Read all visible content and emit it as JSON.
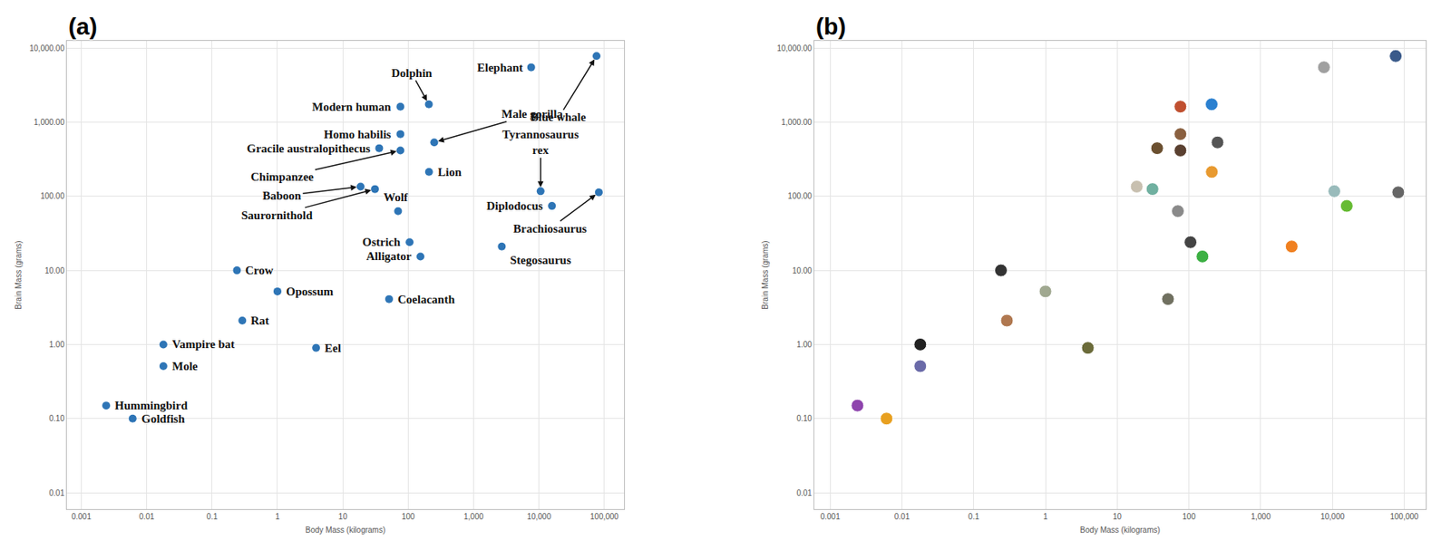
{
  "chart_data": [
    {
      "type": "scatter",
      "title": "(a)",
      "log": true,
      "grid": true,
      "color": "#2e75b6",
      "marker": "circle",
      "xlabel": "Body Mass (kilograms)",
      "ylabel": "Brain Mass (grams)",
      "labels": [
        "Hummingbird",
        "Goldfish",
        "Mole",
        "Vampire bat",
        "Rat",
        "Crow",
        "Opossum",
        "Eel",
        "Coelacanth",
        "Ostrich",
        "Alligator",
        "Stegosaurus",
        "Wolf",
        "Baboon",
        "Saurornithold",
        "Diplodocus",
        "Tyrannosaurus rex",
        "Brachiosaurus",
        "Lion",
        "Male gorilla",
        "Chimpanzee",
        "Gracile australopithecus",
        "Homo habilis",
        "Modern human",
        "Dolphin",
        "Elephant",
        "Blue whale"
      ],
      "x": [
        0.0024,
        0.0061,
        0.018,
        0.018,
        0.29,
        0.24,
        1,
        3.9,
        51,
        105,
        154,
        2700,
        70,
        18.7,
        31,
        15800,
        10600,
        82500,
        208,
        250,
        76,
        36,
        76,
        76,
        207,
        7600,
        76000
      ],
      "values": [
        0.15,
        0.1,
        0.51,
        1.0,
        2.1,
        10,
        5.2,
        0.9,
        4.1,
        24,
        15.4,
        21,
        63,
        135,
        125,
        74,
        117,
        113,
        213,
        533,
        415,
        445,
        690,
        1620,
        1740,
        5500,
        7800
      ],
      "xlim": [
        0.0006,
        200000
      ],
      "ylim": [
        0.006,
        12500
      ],
      "xticks": [
        0.001,
        0.01,
        0.1,
        1,
        10,
        100,
        {
          "value": 1000,
          "label": "1,000"
        },
        {
          "value": 10000,
          "label": "10,000"
        },
        {
          "value": 100000,
          "label": "100,000"
        }
      ],
      "yticks": [
        0.01,
        {
          "value": 0.1,
          "label": "0.10"
        },
        {
          "value": 1,
          "label": "1.00"
        },
        {
          "value": 10,
          "label": "10.00"
        },
        {
          "value": 100,
          "label": "100.00"
        },
        {
          "value": 1000,
          "label": "1,000.00"
        },
        {
          "value": 10000,
          "label": "10,000.00"
        }
      ]
    },
    {
      "type": "scatter",
      "title": "(b)",
      "log": true,
      "grid": true,
      "marker": "circle",
      "xlabel": "Body Mass (kilograms)",
      "ylabel": "Brain Mass (grams)",
      "x": [
        0.0024,
        0.0061,
        0.018,
        0.018,
        0.29,
        0.24,
        1,
        3.9,
        51,
        105,
        154,
        2700,
        70,
        18.7,
        31,
        15800,
        10600,
        82500,
        208,
        250,
        76,
        36,
        76,
        76,
        207,
        7600,
        76000
      ],
      "values": [
        0.15,
        0.1,
        0.51,
        1.0,
        2.1,
        10,
        5.2,
        0.9,
        4.1,
        24,
        15.4,
        21,
        63,
        135,
        125,
        74,
        117,
        113,
        213,
        533,
        415,
        445,
        690,
        1620,
        1740,
        5500,
        7800
      ],
      "colors": [
        "#8e44ad",
        "#e8a020",
        "#6a6aa8",
        "#222222",
        "#b07850",
        "#333333",
        "#a0a890",
        "#6b6b3a",
        "#707060",
        "#444444",
        "#3cb043",
        "#f08020",
        "#8a8a8a",
        "#c8c0b0",
        "#70b0a0",
        "#66bb33",
        "#99bbbb",
        "#666666",
        "#e89a30",
        "#555555",
        "#5a4030",
        "#6b5030",
        "#8a6040",
        "#c05030",
        "#2a80d0",
        "#a0a0a0",
        "#3a5a8a"
      ],
      "xlim": [
        0.0006,
        200000
      ],
      "ylim": [
        0.006,
        12500
      ],
      "xticks": [
        0.001,
        0.01,
        0.1,
        1,
        10,
        100,
        {
          "value": 1000,
          "label": "1,000"
        },
        {
          "value": 10000,
          "label": "10,000"
        },
        {
          "value": 100000,
          "label": "100,000"
        }
      ],
      "yticks": [
        0.01,
        {
          "value": 0.1,
          "label": "0.10"
        },
        {
          "value": 1,
          "label": "1.00"
        },
        {
          "value": 10,
          "label": "10.00"
        },
        {
          "value": 100,
          "label": "100.00"
        },
        {
          "value": 1000,
          "label": "1,000.00"
        },
        {
          "value": 10000,
          "label": "10,000.00"
        }
      ]
    }
  ]
}
